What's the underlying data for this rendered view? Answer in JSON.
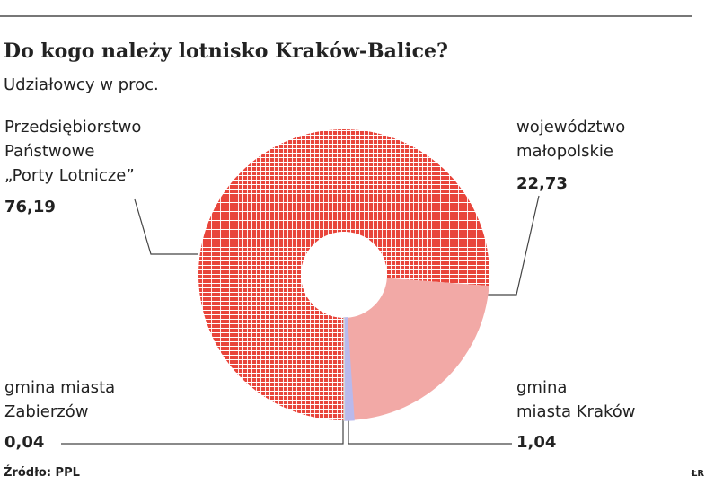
{
  "chart_data": {
    "type": "donut",
    "title": "Do kogo należy lotnisko Kraków-Balice?",
    "subtitle": "Udziałowcy w proc.",
    "categories": [
      "Przedsiębiorstwo\nPaństwowe\n„Porty Lotnicze”",
      "województwo\nmałopolskie",
      "gmina\nmiasta Kraków",
      "gmina miasta\nZabierzów"
    ],
    "values": [
      76.19,
      22.73,
      1.04,
      0.04
    ],
    "value_labels": [
      "76,19",
      "22,73",
      "1,04",
      "0,04"
    ],
    "colors": [
      "#e8453b",
      "#f2a9a6",
      "#b9b9ec",
      "#d8d8d8"
    ],
    "source": "Źródło: PPL",
    "credit": "ŁR"
  }
}
